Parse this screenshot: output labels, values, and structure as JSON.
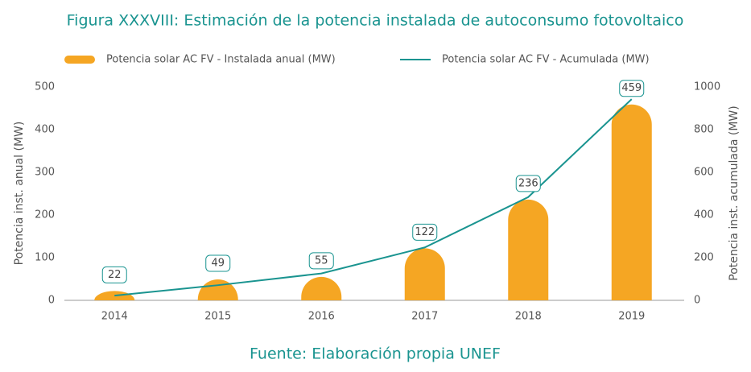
{
  "chart_data": {
    "type": "bar",
    "title": "Figura XXXVIII: Estimación de la potencia instalada de autoconsumo fotovoltaico",
    "source": "Fuente: Elaboración propia UNEF",
    "y_label": "Potencia inst. anual (MW)",
    "y2_label": "Potencia inst. acumulada (MW)",
    "categories": [
      "2014",
      "2015",
      "2016",
      "2017",
      "2018",
      "2019"
    ],
    "series": [
      {
        "name": "Potencia solar AC FV - Instalada anual (MW)",
        "type": "bar",
        "color": "#f5a623",
        "values": [
          22,
          49,
          55,
          122,
          236,
          459
        ]
      },
      {
        "name": "Potencia solar AC FV - Acumulada (MW)",
        "type": "line",
        "axis": "y2",
        "color": "#1a9490",
        "values": [
          22,
          71,
          126,
          248,
          484,
          943
        ]
      }
    ],
    "ylim": [
      0,
      500
    ],
    "yticks": [
      0,
      100,
      200,
      300,
      400,
      500
    ],
    "y2lim": [
      0,
      1000
    ],
    "y2ticks": [
      0,
      200,
      400,
      600,
      800,
      1000
    ],
    "grid": false
  }
}
